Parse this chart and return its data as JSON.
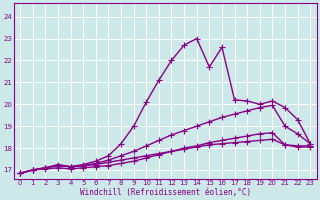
{
  "xlabel": "Windchill (Refroidissement éolien,°C)",
  "bg_color": "#cce8e8",
  "grid_color": "#b0d8d8",
  "line_color": "#880088",
  "xlim": [
    -0.5,
    23.5
  ],
  "ylim": [
    16.6,
    24.6
  ],
  "xticks": [
    0,
    1,
    2,
    3,
    4,
    5,
    6,
    7,
    8,
    9,
    10,
    11,
    12,
    13,
    14,
    15,
    16,
    17,
    18,
    19,
    20,
    21,
    22,
    23
  ],
  "yticks": [
    17,
    18,
    19,
    20,
    21,
    22,
    23,
    24
  ],
  "series": [
    [
      16.85,
      17.0,
      17.1,
      17.2,
      17.15,
      17.2,
      17.25,
      17.35,
      17.45,
      17.55,
      17.65,
      17.75,
      17.85,
      17.95,
      18.05,
      18.15,
      18.2,
      18.25,
      18.3,
      18.35,
      18.4,
      18.15,
      18.1,
      18.1
    ],
    [
      16.85,
      17.0,
      17.1,
      17.2,
      17.15,
      17.2,
      17.3,
      17.45,
      17.65,
      17.85,
      18.1,
      18.35,
      18.6,
      18.8,
      19.0,
      19.2,
      19.4,
      19.55,
      19.7,
      19.85,
      19.95,
      19.0,
      18.65,
      18.2
    ],
    [
      16.85,
      17.0,
      17.1,
      17.25,
      17.15,
      17.25,
      17.4,
      17.65,
      18.2,
      19.0,
      20.1,
      21.1,
      22.0,
      22.7,
      23.0,
      21.7,
      22.6,
      20.2,
      20.15,
      20.0,
      20.15,
      19.85,
      19.3,
      18.2
    ],
    [
      16.85,
      17.0,
      17.05,
      17.1,
      17.05,
      17.1,
      17.15,
      17.2,
      17.3,
      17.4,
      17.55,
      17.7,
      17.85,
      18.0,
      18.1,
      18.25,
      18.35,
      18.45,
      18.55,
      18.65,
      18.7,
      18.15,
      18.05,
      18.05
    ]
  ],
  "marker": "+",
  "markersize": 4,
  "linewidth": 1.0,
  "axis_fontsize": 5.5,
  "tick_fontsize": 5.0
}
